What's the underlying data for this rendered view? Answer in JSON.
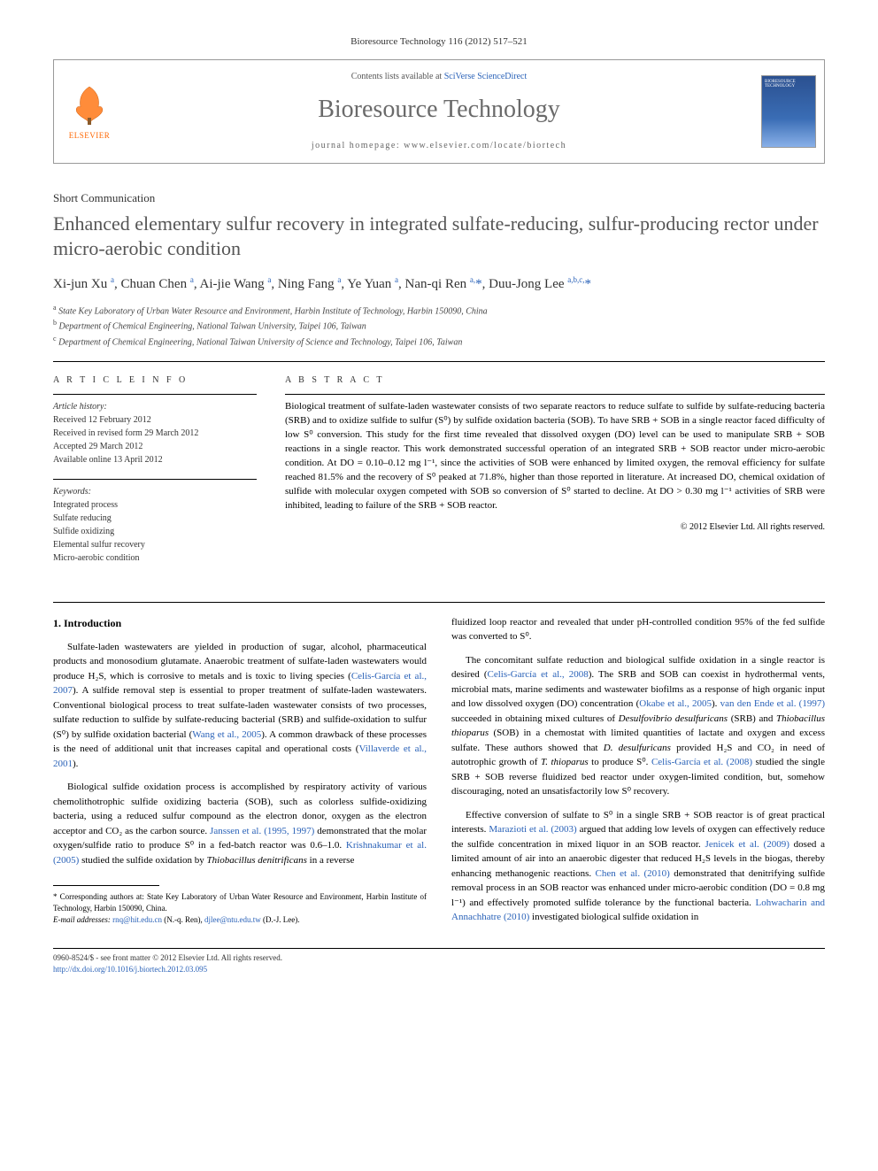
{
  "citation": "Bioresource Technology 116 (2012) 517–521",
  "header": {
    "publisher_name": "ELSEVIER",
    "contents_prefix": "Contents lists available at ",
    "contents_link": "SciVerse ScienceDirect",
    "journal_name": "Bioresource Technology",
    "homepage_prefix": "journal homepage: ",
    "homepage_url": "www.elsevier.com/locate/biortech",
    "cover_title": "BIORESOURCE TECHNOLOGY"
  },
  "article": {
    "type": "Short Communication",
    "title": "Enhanced elementary sulfur recovery in integrated sulfate-reducing, sulfur-producing rector under micro-aerobic condition",
    "authors_html": "Xi-jun Xu <sup>a</sup>, Chuan Chen <sup>a</sup>, Ai-jie Wang <sup>a</sup>, Ning Fang <sup>a</sup>, Ye Yuan <sup>a</sup>, Nan-qi Ren <sup>a,</sup><span class='star'>*</span>, Duu-Jong Lee <sup>a,b,c,</sup><span class='star'>*</span>",
    "affiliations": [
      {
        "sup": "a",
        "text": "State Key Laboratory of Urban Water Resource and Environment, Harbin Institute of Technology, Harbin 150090, China"
      },
      {
        "sup": "b",
        "text": "Department of Chemical Engineering, National Taiwan University, Taipei 106, Taiwan"
      },
      {
        "sup": "c",
        "text": "Department of Chemical Engineering, National Taiwan University of Science and Technology, Taipei 106, Taiwan"
      }
    ]
  },
  "info": {
    "heading": "A R T I C L E   I N F O",
    "history_label": "Article history:",
    "history": [
      "Received 12 February 2012",
      "Received in revised form 29 March 2012",
      "Accepted 29 March 2012",
      "Available online 13 April 2012"
    ],
    "keywords_label": "Keywords:",
    "keywords": [
      "Integrated process",
      "Sulfate reducing",
      "Sulfide oxidizing",
      "Elemental sulfur recovery",
      "Micro-aerobic condition"
    ]
  },
  "abstract": {
    "heading": "A B S T R A C T",
    "text": "Biological treatment of sulfate-laden wastewater consists of two separate reactors to reduce sulfate to sulfide by sulfate-reducing bacteria (SRB) and to oxidize sulfide to sulfur (S⁰) by sulfide oxidation bacteria (SOB). To have SRB + SOB in a single reactor faced difficulty of low S⁰ conversion. This study for the first time revealed that dissolved oxygen (DO) level can be used to manipulate SRB + SOB reactions in a single reactor. This work demonstrated successful operation of an integrated SRB + SOB reactor under micro-aerobic condition. At DO = 0.10–0.12 mg l⁻¹, since the activities of SOB were enhanced by limited oxygen, the removal efficiency for sulfate reached 81.5% and the recovery of S⁰ peaked at 71.8%, higher than those reported in literature. At increased DO, chemical oxidation of sulfide with molecular oxygen competed with SOB so conversion of S⁰ started to decline. At DO > 0.30 mg l⁻¹ activities of SRB were inhibited, leading to failure of the SRB + SOB reactor.",
    "copyright": "© 2012 Elsevier Ltd. All rights reserved."
  },
  "body": {
    "section_number": "1.",
    "section_title": "Introduction",
    "col1": {
      "p1_a": "Sulfate-laden wastewaters are yielded in production of sugar, alcohol, pharmaceutical products and monosodium glutamate. Anaerobic treatment of sulfate-laden wastewaters would produce H₂S, which is corrosive to metals and is toxic to living species (",
      "p1_link1": "Celis-García et al., 2007",
      "p1_b": "). A sulfide removal step is essential to proper treatment of sulfate-laden wastewaters. Conventional biological process to treat sulfate-laden wastewater consists of two processes, sulfate reduction to sulfide by sulfate-reducing bacterial (SRB) and sulfide-oxidation to sulfur (S⁰) by sulfide oxidation bacterial (",
      "p1_link2": "Wang et al., 2005",
      "p1_c": "). A common drawback of these processes is the need of additional unit that increases capital and operational costs (",
      "p1_link3": "Villaverde et al., 2001",
      "p1_d": ").",
      "p2_a": "Biological sulfide oxidation process is accomplished by respiratory activity of various chemolithotrophic sulfide oxidizing bacteria (SOB), such as colorless sulfide-oxidizing bacteria, using a reduced sulfur compound as the electron donor, oxygen as the electron acceptor and CO₂ as the carbon source. ",
      "p2_link1": "Janssen et al. (1995, 1997)",
      "p2_b": " demonstrated that the molar oxygen/sulfide ratio to produce S⁰ in a fed-batch reactor was 0.6–1.0. ",
      "p2_link2": "Krishnakumar et al. (2005)",
      "p2_c": " studied the sulfide oxidation by ",
      "p2_italic": "Thiobacillus denitrificans",
      "p2_d": " in a reverse"
    },
    "col2": {
      "p0": "fluidized loop reactor and revealed that under pH-controlled condition 95% of the fed sulfide was converted to S⁰.",
      "p1_a": "The concomitant sulfate reduction and biological sulfide oxidation in a single reactor is desired (",
      "p1_link1": "Celis-García et al., 2008",
      "p1_b": "). The SRB and SOB can coexist in hydrothermal vents, microbial mats, marine sediments and wastewater biofilms as a response of high organic input and low dissolved oxygen (DO) concentration (",
      "p1_link2": "Okabe et al., 2005",
      "p1_c": "). ",
      "p1_link3": "van den Ende et al. (1997)",
      "p1_d": " succeeded in obtaining mixed cultures of ",
      "p1_it1": "Desulfovibrio desulfuricans",
      "p1_e": " (SRB) and ",
      "p1_it2": "Thiobacillus thioparus",
      "p1_f": " (SOB) in a chemostat with limited quantities of lactate and oxygen and excess sulfate. These authors showed that ",
      "p1_it3": "D. desulfuricans",
      "p1_g": " provided H₂S and CO₂ in need of autotrophic growth of ",
      "p1_it4": "T. thioparus",
      "p1_h": " to produce S⁰. ",
      "p1_link4": "Celis-García et al. (2008)",
      "p1_i": " studied the single SRB + SOB reverse fluidized bed reactor under oxygen-limited condition, but, somehow discouraging, noted an unsatisfactorily low S⁰ recovery.",
      "p2_a": "Effective conversion of sulfate to S⁰ in a single SRB + SOB reactor is of great practical interests. ",
      "p2_link1": "Marazioti et al. (2003)",
      "p2_b": " argued that adding low levels of oxygen can effectively reduce the sulfide concentration in mixed liquor in an SOB reactor. ",
      "p2_link2": "Jenicek et al. (2009)",
      "p2_c": " dosed a limited amount of air into an anaerobic digester that reduced H₂S levels in the biogas, thereby enhancing methanogenic reactions. ",
      "p2_link3": "Chen et al. (2010)",
      "p2_d": " demonstrated that denitrifying sulfide removal process in an SOB reactor was enhanced under micro-aerobic condition (DO = 0.8 mg l⁻¹) and effectively promoted sulfide tolerance by the functional bacteria. ",
      "p2_link4": "Lohwacharin and Annachhatre (2010)",
      "p2_e": " investigated biological sulfide oxidation in"
    }
  },
  "footnotes": {
    "corr_label": "* Corresponding authors at: State Key Laboratory of Urban Water Resource and Environment, Harbin Institute of Technology, Harbin 150090, China.",
    "email_label": "E-mail addresses:",
    "email1": "rnq@hit.edu.cn",
    "email1_who": " (N.-q. Ren), ",
    "email2": "djlee@ntu.edu.tw",
    "email2_who": " (D.-J. Lee)."
  },
  "bottom": {
    "line1": "0960-8524/$ - see front matter © 2012 Elsevier Ltd. All rights reserved.",
    "doi": "http://dx.doi.org/10.1016/j.biortech.2012.03.095"
  },
  "colors": {
    "link": "#2a62b8",
    "publisher": "#ff6600",
    "title_grey": "#555555"
  }
}
